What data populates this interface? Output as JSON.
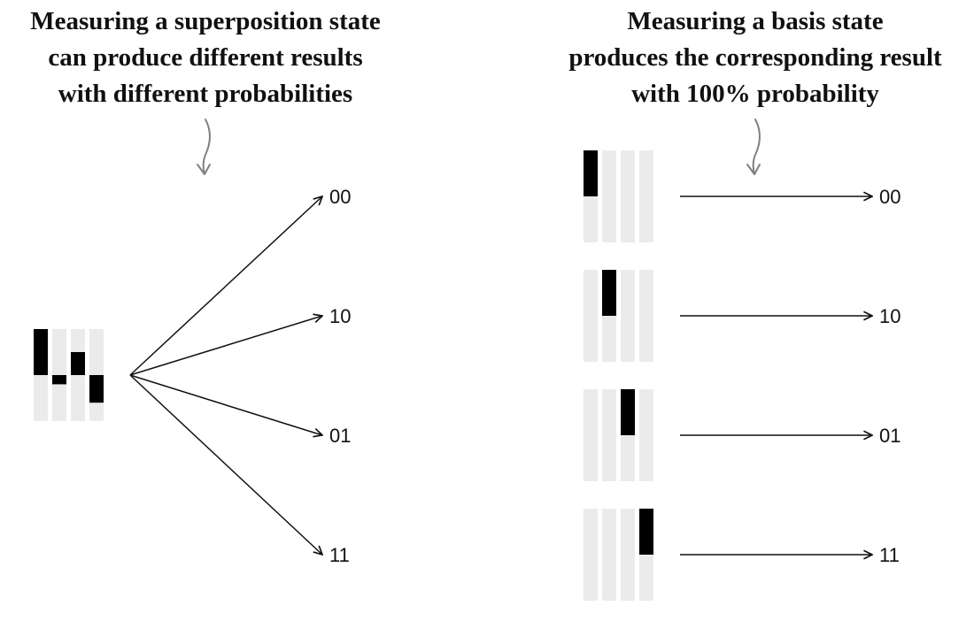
{
  "left_panel": {
    "caption_lines": [
      "Measuring a superposition state",
      "can produce different results",
      "with different probabilities"
    ],
    "state_amplitudes": [
      0.5,
      -0.1,
      0.25,
      -0.3
    ],
    "outcomes": [
      "00",
      "10",
      "01",
      "11"
    ]
  },
  "right_panel": {
    "caption_lines": [
      "Measuring a basis state",
      "produces the corresponding result",
      "with 100% probability"
    ],
    "rows": [
      {
        "active_index": 0,
        "outcome": "00"
      },
      {
        "active_index": 1,
        "outcome": "10"
      },
      {
        "active_index": 2,
        "outcome": "01"
      },
      {
        "active_index": 3,
        "outcome": "11"
      }
    ]
  }
}
